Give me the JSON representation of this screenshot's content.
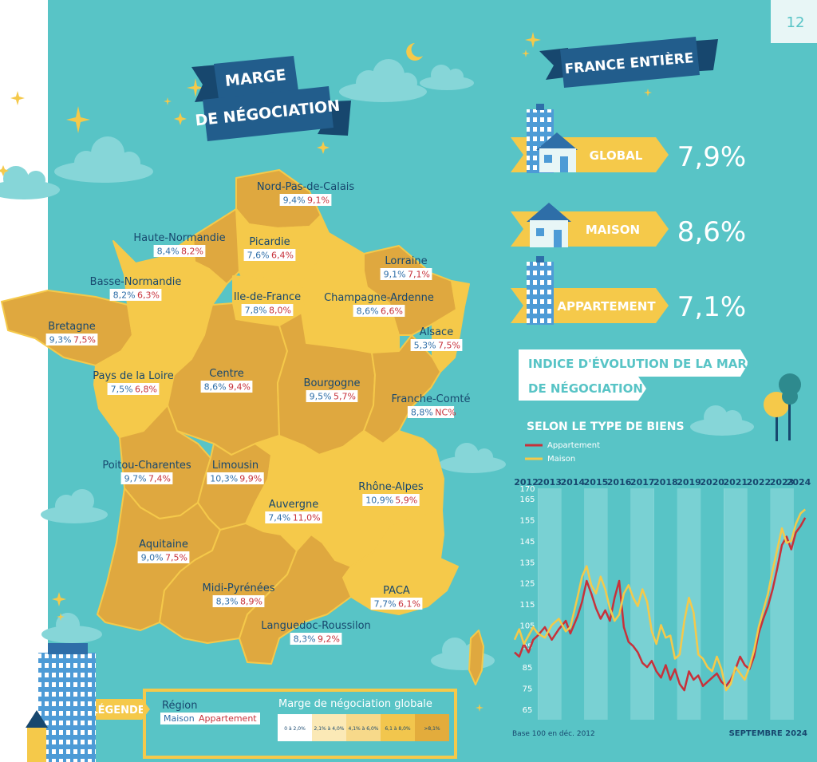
{
  "page_number": "12",
  "map_title": [
    "MARGE",
    "DE NÉGOCIATION"
  ],
  "france_title": "FRANCE ENTIÈRE",
  "france_rows": [
    {
      "label": "GLOBAL",
      "value": "7,9%"
    },
    {
      "label": "MAISON",
      "value": "8,6%"
    },
    {
      "label": "APPARTEMENT",
      "value": "7,1%"
    }
  ],
  "regions": [
    {
      "name": "Nord-Pas-de-Calais",
      "maison": "9,4%",
      "appartement": "9,1%"
    },
    {
      "name": "Haute-Normandie",
      "maison": "8,4%",
      "appartement": "8,2%"
    },
    {
      "name": "Picardie",
      "maison": "7,6%",
      "appartement": "6,4%"
    },
    {
      "name": "Lorraine",
      "maison": "9,1%",
      "appartement": "7,1%"
    },
    {
      "name": "Basse-Normandie",
      "maison": "8,2%",
      "appartement": "6,3%"
    },
    {
      "name": "Ile-de-France",
      "maison": "7,8%",
      "appartement": "8,0%"
    },
    {
      "name": "Champagne-Ardenne",
      "maison": "8,6%",
      "appartement": "6,6%"
    },
    {
      "name": "Bretagne",
      "maison": "9,3%",
      "appartement": "7,5%"
    },
    {
      "name": "Alsace",
      "maison": "5,3%",
      "appartement": "7,5%"
    },
    {
      "name": "Pays de la Loire",
      "maison": "7,5%",
      "appartement": "6,8%"
    },
    {
      "name": "Centre",
      "maison": "8,6%",
      "appartement": "9,4%"
    },
    {
      "name": "Bourgogne",
      "maison": "9,5%",
      "appartement": "5,7%"
    },
    {
      "name": "Franche-Comté",
      "maison": "8,8%",
      "appartement": "NC%"
    },
    {
      "name": "Poitou-Charentes",
      "maison": "9,7%",
      "appartement": "7,4%"
    },
    {
      "name": "Limousin",
      "maison": "10,3%",
      "appartement": "9,9%"
    },
    {
      "name": "Rhône-Alpes",
      "maison": "10,9%",
      "appartement": "5,9%"
    },
    {
      "name": "Auvergne",
      "maison": "7,4%",
      "appartement": "11,0%"
    },
    {
      "name": "Aquitaine",
      "maison": "9,0%",
      "appartement": "7,5%"
    },
    {
      "name": "Midi-Pyrénées",
      "maison": "8,3%",
      "appartement": "8,9%"
    },
    {
      "name": "PACA",
      "maison": "7,7%",
      "appartement": "6,1%"
    },
    {
      "name": "Languedoc-Roussilon",
      "maison": "8,3%",
      "appartement": "9,2%"
    }
  ],
  "legend": {
    "label": "LÉGENDE",
    "region": "Région",
    "maison": "Maison",
    "appartement": "Appartement",
    "scale_title": "Marge de négociation globale",
    "bins": [
      "0 à 2,0%",
      "2,1% à 4,0%",
      "4,1% à 6,0%",
      "6,1 à 8,0%",
      ">8,1%"
    ],
    "bin_colors": [
      "#ffffff",
      "#fbe9b6",
      "#f7d98a",
      "#f2c64d",
      "#e3ac3c"
    ]
  },
  "map_colors": {
    "dark": "#dfa83f",
    "light": "#f5c94a"
  },
  "chart_data": {
    "type": "line",
    "title": "INDICE D'ÉVOLUTION DE LA MARGE DE NÉGOCIATION",
    "subtitle": "SELON LE TYPE DE BIENS",
    "x_ticks": [
      "2012",
      "2013",
      "2014",
      "2015",
      "2016",
      "2017",
      "2018",
      "2019",
      "2020",
      "2021",
      "2022",
      "2023",
      "2024"
    ],
    "x_range": [
      2012.0,
      2024.7
    ],
    "y_ticks": [
      65,
      75,
      85,
      95,
      105,
      115,
      125,
      135,
      145,
      155,
      165,
      170
    ],
    "ylim": [
      60,
      170
    ],
    "footnote": "Base 100 en déc. 2012",
    "date_label": "SEPTEMBRE 2024",
    "series": [
      {
        "name": "Appartement",
        "color": "#c7313a",
        "points": [
          [
            2012.0,
            92
          ],
          [
            2012.2,
            90
          ],
          [
            2012.4,
            96
          ],
          [
            2012.6,
            92
          ],
          [
            2012.8,
            98
          ],
          [
            2013.0,
            100
          ],
          [
            2013.3,
            104
          ],
          [
            2013.6,
            98
          ],
          [
            2013.9,
            103
          ],
          [
            2014.2,
            107
          ],
          [
            2014.4,
            101
          ],
          [
            2014.7,
            109
          ],
          [
            2014.9,
            116
          ],
          [
            2015.1,
            126
          ],
          [
            2015.3,
            120
          ],
          [
            2015.5,
            113
          ],
          [
            2015.7,
            108
          ],
          [
            2015.9,
            112
          ],
          [
            2016.1,
            107
          ],
          [
            2016.3,
            118
          ],
          [
            2016.5,
            126
          ],
          [
            2016.7,
            104
          ],
          [
            2016.9,
            97
          ],
          [
            2017.1,
            95
          ],
          [
            2017.3,
            92
          ],
          [
            2017.5,
            87
          ],
          [
            2017.7,
            85
          ],
          [
            2017.9,
            88
          ],
          [
            2018.1,
            83
          ],
          [
            2018.3,
            80
          ],
          [
            2018.5,
            86
          ],
          [
            2018.7,
            79
          ],
          [
            2018.9,
            84
          ],
          [
            2019.1,
            77
          ],
          [
            2019.3,
            74
          ],
          [
            2019.5,
            83
          ],
          [
            2019.7,
            79
          ],
          [
            2019.9,
            81
          ],
          [
            2020.1,
            76
          ],
          [
            2020.3,
            78
          ],
          [
            2020.5,
            80
          ],
          [
            2020.7,
            82
          ],
          [
            2020.9,
            78
          ],
          [
            2021.1,
            76
          ],
          [
            2021.3,
            79
          ],
          [
            2021.5,
            84
          ],
          [
            2021.7,
            90
          ],
          [
            2021.9,
            86
          ],
          [
            2022.1,
            84
          ],
          [
            2022.3,
            90
          ],
          [
            2022.5,
            101
          ],
          [
            2022.7,
            108
          ],
          [
            2022.9,
            114
          ],
          [
            2023.1,
            122
          ],
          [
            2023.3,
            132
          ],
          [
            2023.5,
            143
          ],
          [
            2023.7,
            147
          ],
          [
            2023.9,
            141
          ],
          [
            2024.1,
            149
          ],
          [
            2024.3,
            152
          ],
          [
            2024.5,
            156
          ]
        ]
      },
      {
        "name": "Maison",
        "color": "#f5c94a",
        "points": [
          [
            2012.0,
            98
          ],
          [
            2012.2,
            103
          ],
          [
            2012.4,
            96
          ],
          [
            2012.6,
            100
          ],
          [
            2012.8,
            104
          ],
          [
            2013.0,
            101
          ],
          [
            2013.3,
            99
          ],
          [
            2013.6,
            105
          ],
          [
            2013.9,
            108
          ],
          [
            2014.2,
            102
          ],
          [
            2014.4,
            104
          ],
          [
            2014.7,
            118
          ],
          [
            2014.9,
            128
          ],
          [
            2015.1,
            133
          ],
          [
            2015.3,
            124
          ],
          [
            2015.5,
            120
          ],
          [
            2015.7,
            128
          ],
          [
            2015.9,
            122
          ],
          [
            2016.1,
            113
          ],
          [
            2016.3,
            107
          ],
          [
            2016.5,
            110
          ],
          [
            2016.7,
            120
          ],
          [
            2016.9,
            124
          ],
          [
            2017.1,
            118
          ],
          [
            2017.3,
            114
          ],
          [
            2017.5,
            122
          ],
          [
            2017.7,
            116
          ],
          [
            2017.9,
            102
          ],
          [
            2018.1,
            96
          ],
          [
            2018.3,
            105
          ],
          [
            2018.5,
            99
          ],
          [
            2018.7,
            100
          ],
          [
            2018.9,
            89
          ],
          [
            2019.1,
            91
          ],
          [
            2019.3,
            107
          ],
          [
            2019.5,
            118
          ],
          [
            2019.7,
            111
          ],
          [
            2019.9,
            91
          ],
          [
            2020.1,
            89
          ],
          [
            2020.3,
            85
          ],
          [
            2020.5,
            83
          ],
          [
            2020.7,
            90
          ],
          [
            2020.9,
            84
          ],
          [
            2021.1,
            74
          ],
          [
            2021.3,
            77
          ],
          [
            2021.5,
            85
          ],
          [
            2021.7,
            82
          ],
          [
            2021.9,
            79
          ],
          [
            2022.1,
            85
          ],
          [
            2022.3,
            93
          ],
          [
            2022.5,
            104
          ],
          [
            2022.7,
            112
          ],
          [
            2022.9,
            120
          ],
          [
            2023.1,
            131
          ],
          [
            2023.3,
            141
          ],
          [
            2023.5,
            151
          ],
          [
            2023.7,
            144
          ],
          [
            2023.9,
            145
          ],
          [
            2024.1,
            153
          ],
          [
            2024.3,
            158
          ],
          [
            2024.5,
            160
          ]
        ]
      }
    ]
  }
}
